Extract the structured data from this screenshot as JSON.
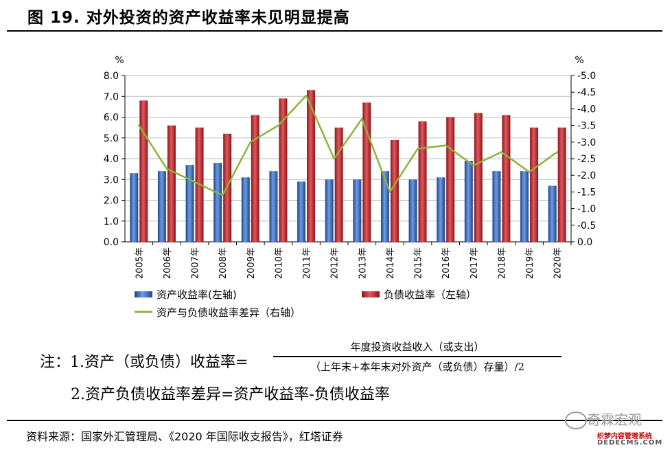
{
  "header": {
    "title": "图 19. 对外投资的资产收益率未见明显提高"
  },
  "chart_data": {
    "type": "bar",
    "categories": [
      "2005年",
      "2006年",
      "2007年",
      "2008年",
      "2009年",
      "2010年",
      "2011年",
      "2012年",
      "2013年",
      "2014年",
      "2015年",
      "2016年",
      "2017年",
      "2018年",
      "2019年",
      "2020年"
    ],
    "series": [
      {
        "name": "资产收益率(左轴)",
        "type": "bar",
        "axis": "left",
        "color": "#2e5fae",
        "values": [
          3.3,
          3.4,
          3.7,
          3.8,
          3.1,
          3.4,
          2.9,
          3.0,
          3.0,
          3.4,
          3.0,
          3.1,
          3.9,
          3.4,
          3.4,
          2.7
        ]
      },
      {
        "name": "负债收益率（左轴）",
        "type": "bar",
        "axis": "left",
        "color": "#c0262d",
        "values": [
          6.8,
          5.6,
          5.5,
          5.2,
          6.1,
          6.9,
          7.3,
          5.5,
          6.7,
          4.9,
          5.8,
          6.0,
          6.2,
          6.1,
          5.5,
          5.5
        ]
      },
      {
        "name": "资产与负债收益率差异（右轴）",
        "type": "line",
        "axis": "right",
        "color": "#8ab43a",
        "values": [
          -3.5,
          -2.2,
          -1.8,
          -1.4,
          -3.0,
          -3.5,
          -4.4,
          -2.5,
          -3.7,
          -1.5,
          -2.8,
          -2.9,
          -2.3,
          -2.7,
          -2.1,
          -2.7
        ]
      }
    ],
    "left_axis": {
      "unit": "%",
      "min": 0,
      "max": 8,
      "step": 1,
      "ticks": [
        "0.0",
        "1.0",
        "2.0",
        "3.0",
        "4.0",
        "5.0",
        "6.0",
        "7.0",
        "8.0"
      ]
    },
    "right_axis": {
      "unit": "%",
      "min": -5,
      "max": 0,
      "step": 0.5,
      "inverted": true,
      "ticks": [
        "0.0",
        "-0.5",
        "-1.0",
        "-1.5",
        "-2.0",
        "-2.5",
        "-3.0",
        "-3.5",
        "-4.0",
        "-4.5",
        "-5.0"
      ]
    },
    "grid": true,
    "legend_position": "bottom"
  },
  "notes": {
    "prefix": "注：1.资产（或负债）收益率=",
    "numerator": "年度投资收益收入（或支出）",
    "denominator": "（上年末+本年末对外资产（或负债）存量）/2",
    "line2": "2.资产负债收益率差异=资产收益率-负债收益率"
  },
  "source": "资料来源：国家外汇管理局、《2020 年国际收支报告》，红塔证券",
  "watermark": {
    "text": "奇霖宏观",
    "sub1": "织梦内容管理系统",
    "sub2": "DEDECMS.COM"
  }
}
